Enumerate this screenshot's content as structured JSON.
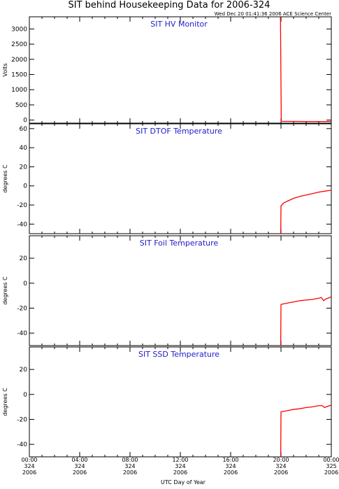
{
  "chart_data": {
    "title": "SIT behind Housekeeping Data for 2006-324",
    "subtitle": "Wed Dec 20 01:41:36 2006 ACE Science Center",
    "xlabel": "UTC Day of Year",
    "x_ticks": [
      {
        "hour": 0,
        "lines": [
          "00:00",
          "324",
          "2006"
        ]
      },
      {
        "hour": 4,
        "lines": [
          "04:00",
          "324",
          "2006"
        ]
      },
      {
        "hour": 8,
        "lines": [
          "08:00",
          "324",
          "2006"
        ]
      },
      {
        "hour": 12,
        "lines": [
          "12:00",
          "324",
          "2006"
        ]
      },
      {
        "hour": 16,
        "lines": [
          "16:00",
          "324",
          "2006"
        ]
      },
      {
        "hour": 20,
        "lines": [
          "20:00",
          "324",
          "2006"
        ]
      },
      {
        "hour": 24,
        "lines": [
          "00:00",
          "325",
          "2006"
        ]
      }
    ],
    "xlim_hours": [
      0,
      24
    ],
    "line_color": "#ff0000",
    "title_color": "#2020c8",
    "panels": [
      {
        "type": "line",
        "title": "SIT HV Monitor",
        "ylabel": "Volts",
        "ylim": [
          -100,
          3400
        ],
        "yticks": [
          0,
          500,
          1000,
          1500,
          2000,
          2500,
          3000
        ],
        "series": [
          {
            "x": [
              19.95,
              19.96,
              20.02,
              22,
              24
            ],
            "y": [
              3380,
              3300,
              -40,
              -45,
              -45
            ]
          }
        ]
      },
      {
        "type": "line",
        "title": "SIT DTOF Temperature",
        "ylabel": "degrees C",
        "ylim": [
          -50,
          65
        ],
        "yticks": [
          -40,
          -20,
          0,
          20,
          40,
          60
        ],
        "series": [
          {
            "x": [
              19.98,
              20.0,
              20.2,
              20.5,
              21,
              21.5,
              22,
              22.5,
              23,
              23.5,
              24
            ],
            "y": [
              -50,
              -21,
              -18,
              -16,
              -13,
              -11,
              -9.5,
              -8,
              -6.5,
              -5.5,
              -4.5
            ]
          }
        ]
      },
      {
        "type": "line",
        "title": "SIT Foil Temperature",
        "ylabel": "degrees C",
        "ylim": [
          -50,
          38
        ],
        "yticks": [
          -40,
          -20,
          0,
          20
        ],
        "series": [
          {
            "x": [
              19.98,
              20.0,
              20.5,
              21,
              21.5,
              22,
              22.5,
              23,
              23.2,
              23.4,
              23.5,
              23.6,
              24
            ],
            "y": [
              -50,
              -17,
              -16,
              -15,
              -14,
              -13.5,
              -13,
              -12,
              -11.5,
              -14,
              -13,
              -12.5,
              -11
            ]
          }
        ]
      },
      {
        "type": "line",
        "title": "SIT SSD Temperature",
        "ylabel": "degrees C",
        "ylim": [
          -50,
          38
        ],
        "yticks": [
          -40,
          -20,
          0,
          20
        ],
        "series": [
          {
            "x": [
              19.98,
              20.0,
              20.5,
              21,
              21.5,
              22,
              22.5,
              23,
              23.3,
              23.45,
              23.6,
              24
            ],
            "y": [
              -50,
              -14,
              -13,
              -12,
              -11.5,
              -10.5,
              -10,
              -9,
              -9,
              -10.5,
              -10,
              -8.5
            ]
          }
        ]
      }
    ]
  }
}
